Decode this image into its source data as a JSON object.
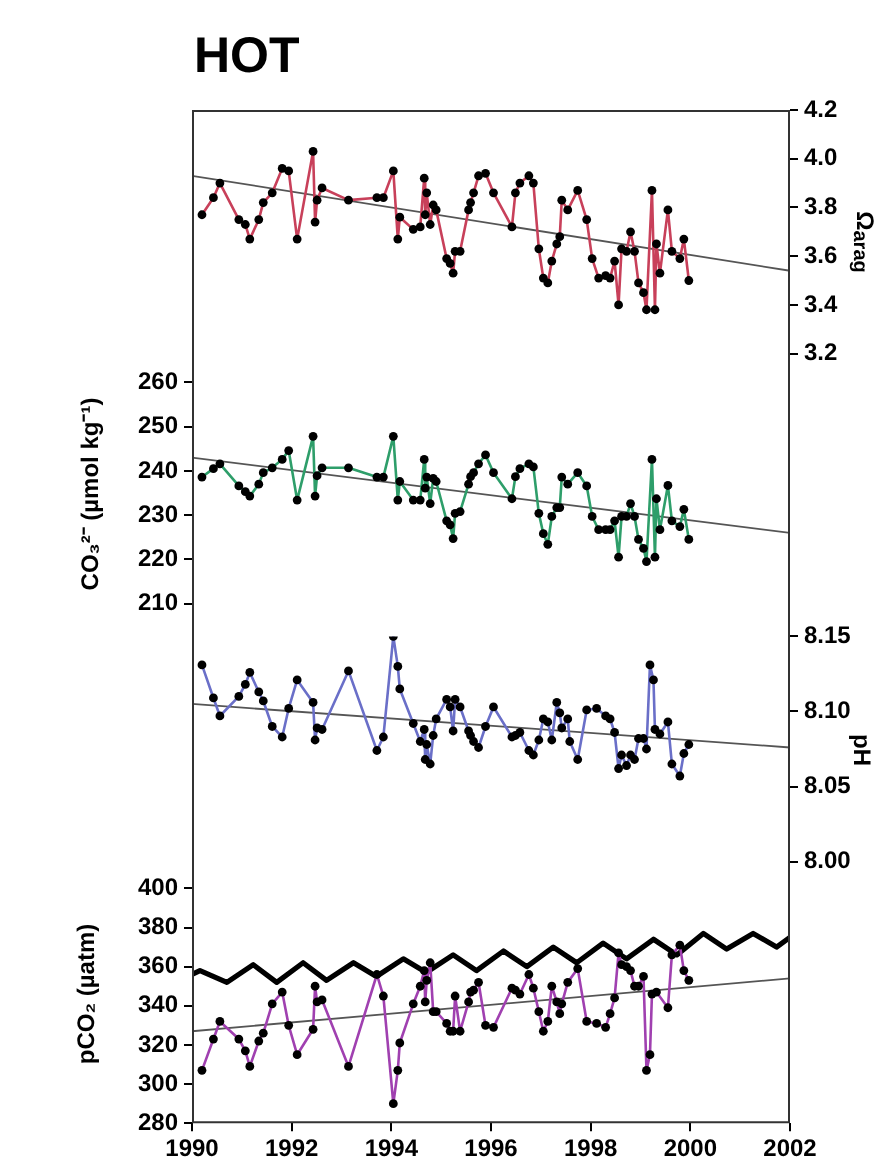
{
  "chart_data": [
    {
      "type": "line",
      "title": "HOT",
      "y2label": "Ω$_{arag}$",
      "xlim": [
        1990,
        2002
      ],
      "y2lim": [
        3.2,
        4.2
      ],
      "y2ticks": [
        3.2,
        3.4,
        3.6,
        3.8,
        {
          "value": 4,
          "label": "4.0"
        },
        4.2
      ],
      "tick_labels": "y",
      "marker": "circle",
      "series": [
        {
          "color": "#c8405a",
          "axis": "y2",
          "x": [
            1990.2,
            1990.43,
            1990.56,
            1990.94,
            1991.07,
            1991.16,
            1991.34,
            1991.43,
            1991.61,
            1991.81,
            1991.94,
            1992.11,
            1992.43,
            1992.47,
            1992.51,
            1992.61,
            1993.14,
            1993.71,
            1993.84,
            1994.04,
            1994.13,
            1994.17,
            1994.44,
            1994.58,
            1994.66,
            1994.68,
            1994.71,
            1994.78,
            1994.84,
            1994.9,
            1995.11,
            1995.18,
            1995.24,
            1995.28,
            1995.38,
            1995.55,
            1995.59,
            1995.65,
            1995.75,
            1995.89,
            1996.05,
            1996.42,
            1996.49,
            1996.58,
            1996.76,
            1996.85,
            1996.96,
            1997.05,
            1997.14,
            1997.22,
            1997.32,
            1997.38,
            1997.42,
            1997.54,
            1997.74,
            1997.92,
            1998.03,
            1998.16,
            1998.3,
            1998.39,
            1998.48,
            1998.56,
            1998.62,
            1998.72,
            1998.8,
            1998.88,
            1998.96,
            1999.06,
            1999.12,
            1999.23,
            1999.29,
            1999.32,
            1999.39,
            1999.55,
            1999.63,
            1999.79,
            1999.87,
            1999.97
          ],
          "values": [
            3.77,
            3.84,
            3.9,
            3.75,
            3.73,
            3.67,
            3.75,
            3.82,
            3.86,
            3.96,
            3.95,
            3.67,
            4.03,
            3.74,
            3.83,
            3.88,
            3.83,
            3.84,
            3.84,
            3.95,
            3.67,
            3.76,
            3.71,
            3.72,
            3.92,
            3.77,
            3.86,
            3.73,
            3.81,
            3.79,
            3.59,
            3.57,
            3.53,
            3.62,
            3.62,
            3.79,
            3.82,
            3.86,
            3.93,
            3.94,
            3.86,
            3.72,
            3.86,
            3.9,
            3.93,
            3.9,
            3.63,
            3.51,
            3.49,
            3.58,
            3.65,
            3.68,
            3.83,
            3.79,
            3.87,
            3.75,
            3.59,
            3.51,
            3.52,
            3.51,
            3.58,
            3.4,
            3.63,
            3.62,
            3.7,
            3.62,
            3.49,
            3.45,
            3.38,
            3.87,
            3.38,
            3.65,
            3.53,
            3.79,
            3.62,
            3.59,
            3.67,
            3.5
          ]
        },
        {
          "marker": "none",
          "color": "#555555",
          "axis": "y2",
          "x": [
            1990,
            2002
          ],
          "values": [
            3.93,
            3.54
          ]
        }
      ]
    },
    {
      "type": "line",
      "ylabel": "CO₃²⁻ (µmol kg⁻¹)",
      "xlim": [
        1990,
        2002
      ],
      "ylim": [
        210,
        260
      ],
      "yticks": [
        210,
        220,
        230,
        240,
        250,
        260
      ],
      "tick_labels": "y",
      "marker": "circle",
      "series": [
        {
          "color": "#2e9e6a",
          "x": [
            1990.2,
            1990.43,
            1990.56,
            1990.94,
            1991.07,
            1991.16,
            1991.34,
            1991.43,
            1991.61,
            1991.81,
            1991.94,
            1992.11,
            1992.43,
            1992.47,
            1992.51,
            1992.61,
            1993.14,
            1993.71,
            1993.84,
            1994.04,
            1994.13,
            1994.17,
            1994.44,
            1994.58,
            1994.66,
            1994.68,
            1994.71,
            1994.78,
            1994.84,
            1994.9,
            1995.11,
            1995.18,
            1995.24,
            1995.28,
            1995.38,
            1995.55,
            1995.59,
            1995.65,
            1995.75,
            1995.89,
            1996.05,
            1996.42,
            1996.49,
            1996.58,
            1996.76,
            1996.85,
            1996.96,
            1997.05,
            1997.14,
            1997.22,
            1997.32,
            1997.38,
            1997.42,
            1997.54,
            1997.74,
            1997.92,
            1998.03,
            1998.16,
            1998.3,
            1998.39,
            1998.48,
            1998.56,
            1998.62,
            1998.72,
            1998.8,
            1998.88,
            1998.96,
            1999.06,
            1999.12,
            1999.23,
            1999.29,
            1999.32,
            1999.39,
            1999.55,
            1999.63,
            1999.79,
            1999.87,
            1999.97
          ],
          "values": [
            238.6,
            240.5,
            241.6,
            236.6,
            235.3,
            234.3,
            237.0,
            239.6,
            240.7,
            242.6,
            244.6,
            233.4,
            247.8,
            234.3,
            238.9,
            240.7,
            240.7,
            238.6,
            238.6,
            247.8,
            233.4,
            237.6,
            233.4,
            233.4,
            242.6,
            236.1,
            238.6,
            232.6,
            238.3,
            237.6,
            228.7,
            227.8,
            224.7,
            230.4,
            230.8,
            237.0,
            238.7,
            239.6,
            241.6,
            243.6,
            239.6,
            233.7,
            238.7,
            240.5,
            241.6,
            240.9,
            230.4,
            225.8,
            223.4,
            229.7,
            231.7,
            231.7,
            238.6,
            237.0,
            239.6,
            236.6,
            229.7,
            226.7,
            226.7,
            226.7,
            228.7,
            220.5,
            229.7,
            229.7,
            232.6,
            229.7,
            224.5,
            222.5,
            219.5,
            242.6,
            220.5,
            233.7,
            226.7,
            236.7,
            228.7,
            227.4,
            231.3,
            224.5
          ]
        },
        {
          "marker": "none",
          "color": "#555555",
          "x": [
            1990,
            2002
          ],
          "values": [
            243,
            226
          ]
        }
      ]
    },
    {
      "type": "line",
      "y2label": "pH",
      "xlim": [
        1990,
        2002
      ],
      "y2lim": [
        8,
        8.15
      ],
      "y2ticks": [
        {
          "value": 8,
          "label": "8.00"
        },
        8.05,
        {
          "value": 8.1,
          "label": "8.10"
        },
        8.15
      ],
      "tick_labels": "y",
      "marker": "circle",
      "series": [
        {
          "color": "#6a6fc8",
          "axis": "y2",
          "x": [
            1990.2,
            1990.43,
            1990.56,
            1990.94,
            1991.07,
            1991.16,
            1991.34,
            1991.43,
            1991.61,
            1991.81,
            1991.94,
            1992.11,
            1992.43,
            1992.47,
            1992.51,
            1992.61,
            1993.14,
            1993.71,
            1993.84,
            1994.04,
            1994.13,
            1994.17,
            1994.44,
            1994.58,
            1994.66,
            1994.68,
            1994.71,
            1994.78,
            1994.84,
            1994.9,
            1995.11,
            1995.18,
            1995.24,
            1995.28,
            1995.38,
            1995.55,
            1995.59,
            1995.65,
            1995.75,
            1995.89,
            1996.05,
            1996.42,
            1996.49,
            1996.58,
            1996.76,
            1996.85,
            1996.96,
            1997.05,
            1997.14,
            1997.22,
            1997.32,
            1997.38,
            1997.42,
            1997.54,
            1997.58,
            1997.74,
            1997.92,
            1998.12,
            1998.3,
            1998.39,
            1998.48,
            1998.56,
            1998.62,
            1998.72,
            1998.8,
            1998.88,
            1998.96,
            1999.06,
            1999.12,
            1999.19,
            1999.26,
            1999.29,
            1999.39,
            1999.55,
            1999.63,
            1999.79,
            1999.87,
            1999.97
          ],
          "values": [
            8.131,
            8.109,
            8.097,
            8.11,
            8.118,
            8.126,
            8.113,
            8.107,
            8.09,
            8.083,
            8.102,
            8.121,
            8.106,
            8.081,
            8.089,
            8.088,
            8.127,
            8.074,
            8.083,
            8.15,
            8.13,
            8.115,
            8.092,
            8.08,
            8.088,
            8.068,
            8.078,
            8.065,
            8.084,
            8.095,
            8.108,
            8.103,
            8.087,
            8.108,
            8.103,
            8.087,
            8.084,
            8.08,
            8.076,
            8.09,
            8.103,
            8.083,
            8.084,
            8.086,
            8.074,
            8.071,
            8.081,
            8.095,
            8.093,
            8.081,
            8.106,
            8.099,
            8.089,
            8.095,
            8.08,
            8.068,
            8.101,
            8.102,
            8.097,
            8.095,
            8.086,
            8.062,
            8.071,
            8.064,
            8.071,
            8.068,
            8.082,
            8.082,
            8.075,
            8.131,
            8.121,
            8.088,
            8.085,
            8.093,
            8.065,
            8.057,
            8.072,
            8.078
          ]
        },
        {
          "marker": "none",
          "color": "#555555",
          "axis": "y2",
          "x": [
            1990,
            2002
          ],
          "values": [
            8.105,
            8.076
          ]
        }
      ]
    },
    {
      "type": "line",
      "ylabel": "pCO₂ (µatm)",
      "xlim": [
        1990,
        2002
      ],
      "xticks": [
        1990,
        1992,
        1994,
        1996,
        1998,
        2000,
        2002
      ],
      "ylim": [
        280,
        400
      ],
      "yticks": [
        280,
        300,
        320,
        340,
        360,
        380,
        400
      ],
      "marker": "circle",
      "series": [
        {
          "color": "#a040b0",
          "x": [
            1990.2,
            1990.43,
            1990.56,
            1990.94,
            1991.07,
            1991.16,
            1991.34,
            1991.43,
            1991.61,
            1991.81,
            1991.94,
            1992.11,
            1992.43,
            1992.47,
            1992.51,
            1992.61,
            1993.14,
            1993.71,
            1993.84,
            1994.04,
            1994.13,
            1994.17,
            1994.44,
            1994.58,
            1994.66,
            1994.68,
            1994.71,
            1994.78,
            1994.84,
            1994.9,
            1995.11,
            1995.18,
            1995.24,
            1995.28,
            1995.38,
            1995.55,
            1995.59,
            1995.65,
            1995.75,
            1995.89,
            1996.05,
            1996.42,
            1996.49,
            1996.58,
            1996.76,
            1996.85,
            1996.96,
            1997.05,
            1997.14,
            1997.22,
            1997.32,
            1997.38,
            1997.42,
            1997.54,
            1997.74,
            1997.92,
            1998.12,
            1998.3,
            1998.39,
            1998.48,
            1998.56,
            1998.62,
            1998.72,
            1998.8,
            1998.88,
            1998.96,
            1999.06,
            1999.12,
            1999.19,
            1999.23,
            1999.32,
            1999.55,
            1999.63,
            1999.79,
            1999.87,
            1999.97
          ],
          "values": [
            307,
            323,
            332,
            323,
            317,
            309,
            322,
            326,
            341,
            347,
            330,
            315,
            328,
            350,
            342,
            343,
            309,
            356,
            345,
            290,
            307,
            321,
            341,
            350,
            358,
            342,
            353,
            362,
            337,
            337,
            331,
            327,
            327,
            345,
            327,
            342,
            347,
            348,
            352,
            330,
            329,
            349,
            348,
            346,
            356,
            349,
            337,
            327,
            332,
            350,
            342,
            336,
            341,
            352,
            359,
            332,
            331,
            329,
            336,
            344,
            367,
            361,
            360,
            358,
            350,
            350,
            355,
            307,
            315,
            346,
            347,
            339,
            366,
            371,
            358,
            353
          ]
        },
        {
          "marker": "none",
          "color": "#000000",
          "x": [
            1990,
            1990.16,
            1990.7,
            1991.23,
            1991.7,
            1992.23,
            1992.7,
            1993.24,
            1993.7,
            1994.24,
            1994.7,
            1995.24,
            1995.71,
            1996.25,
            1996.72,
            1997.25,
            1997.72,
            1998.25,
            1998.72,
            1999.26,
            1999.73,
            2000.26,
            2000.73,
            2001.26,
            2001.73,
            2002
          ],
          "values": [
            356,
            358,
            352,
            361,
            352,
            362,
            353,
            362,
            355,
            364,
            357,
            366,
            358,
            368,
            360,
            370,
            362,
            372,
            364,
            374,
            366,
            377,
            369,
            377,
            370,
            375
          ]
        },
        {
          "marker": "none",
          "color": "#555555",
          "x": [
            1990,
            2002
          ],
          "values": [
            327,
            354
          ]
        }
      ]
    }
  ]
}
